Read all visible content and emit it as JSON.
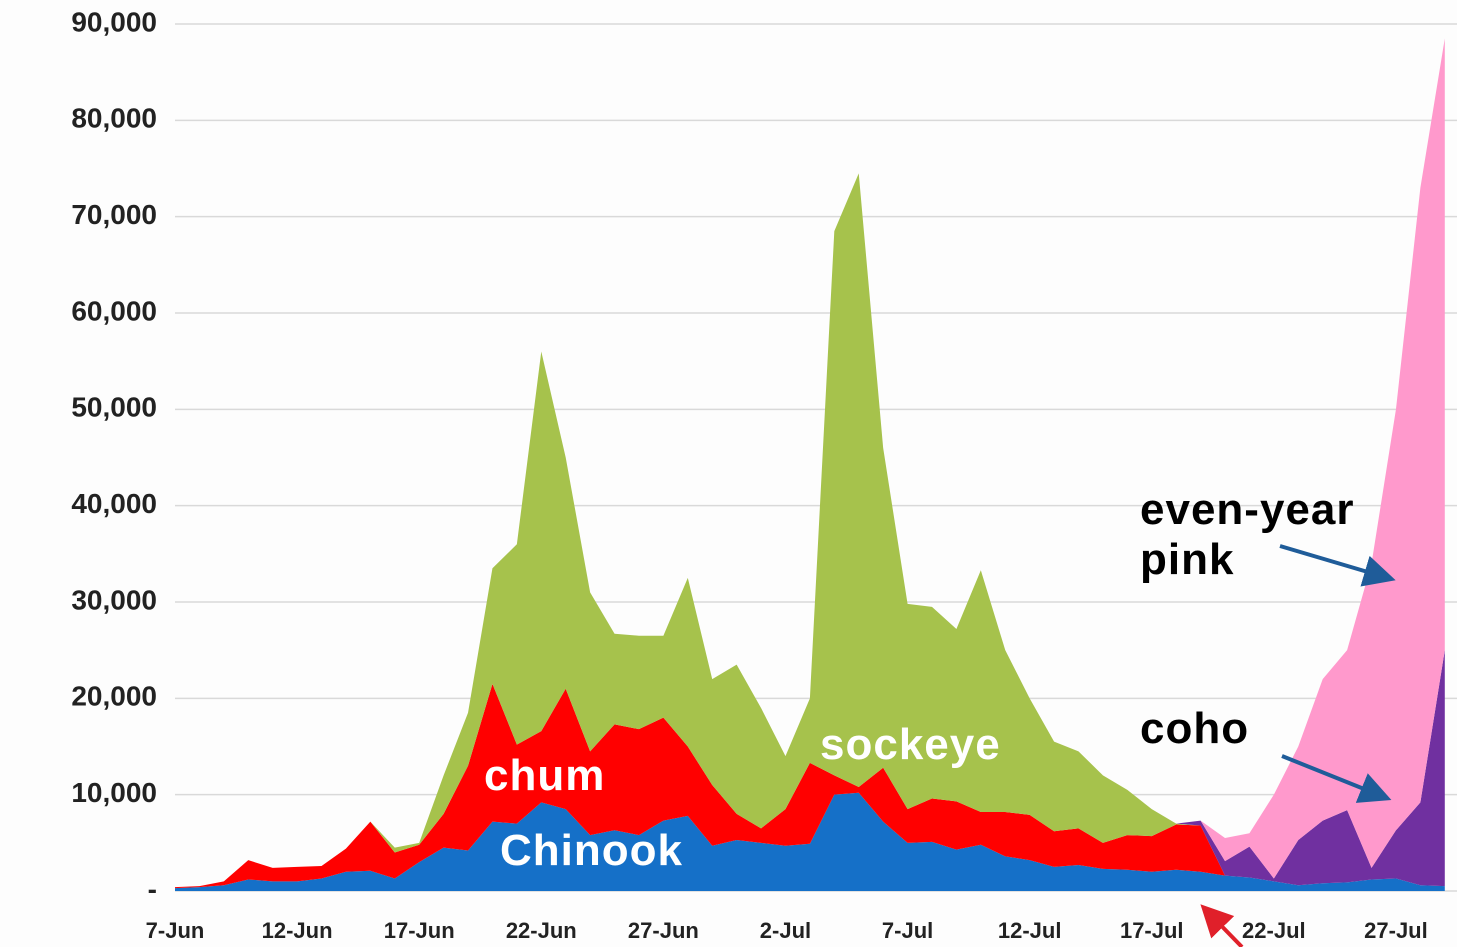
{
  "chart_data": {
    "type": "stacked-area",
    "categories": [
      "7-Jun",
      null,
      null,
      null,
      null,
      "12-Jun",
      null,
      null,
      null,
      null,
      "17-Jun",
      null,
      null,
      null,
      null,
      "22-Jun",
      null,
      null,
      null,
      null,
      "27-Jun",
      null,
      null,
      null,
      null,
      "2-Jul",
      null,
      null,
      null,
      null,
      "7-Jul",
      null,
      null,
      null,
      null,
      "12-Jul",
      null,
      null,
      null,
      null,
      "17-Jul",
      null,
      null,
      null,
      null,
      "22-Jul",
      null,
      null,
      null,
      null,
      "27-Jul",
      null,
      null
    ],
    "series": [
      {
        "name": "Chinook",
        "color": "#1570c8",
        "values": [
          300,
          400,
          600,
          1200,
          1000,
          1000,
          1300,
          2000,
          2100,
          1300,
          3000,
          4500,
          4200,
          7200,
          7000,
          9200,
          8500,
          5800,
          6300,
          5800,
          7300,
          7800,
          4700,
          5300,
          5000,
          4700,
          4900,
          10000,
          10200,
          7200,
          5000,
          5100,
          4300,
          4800,
          3600,
          3200,
          2500,
          2700,
          2300,
          2200,
          2000,
          2200,
          2000,
          1600,
          1400,
          1000,
          600,
          800,
          900,
          1200,
          1300,
          600,
          500
        ]
      },
      {
        "name": "chum",
        "color": "#ff0000",
        "values": [
          100,
          100,
          400,
          2000,
          1400,
          1500,
          1300,
          2400,
          5100,
          2700,
          1800,
          3500,
          8800,
          14300,
          8200,
          7400,
          12500,
          8700,
          11000,
          11000,
          10700,
          7200,
          6300,
          2700,
          1500,
          3800,
          8400,
          2000,
          600,
          5600,
          3500,
          4500,
          5000,
          3400,
          4600,
          4700,
          3700,
          3800,
          2700,
          3600,
          3700,
          4700,
          4800,
          0,
          0,
          0,
          0,
          0,
          0,
          0,
          0,
          0,
          0
        ]
      },
      {
        "name": "sockeye",
        "color": "#a6c24c",
        "values": [
          0,
          0,
          0,
          0,
          0,
          0,
          0,
          0,
          0,
          500,
          200,
          4000,
          5500,
          12000,
          20800,
          39400,
          24000,
          16500,
          9400,
          9700,
          8500,
          17500,
          11000,
          15500,
          12500,
          5500,
          6700,
          56500,
          63700,
          33200,
          21300,
          19900,
          17900,
          25100,
          16800,
          12100,
          9300,
          8000,
          7000,
          4700,
          2800,
          100,
          0,
          0,
          0,
          0,
          0,
          0,
          0,
          0,
          0,
          0,
          0
        ]
      },
      {
        "name": "coho",
        "color": "#7030a0",
        "values": [
          0,
          0,
          0,
          0,
          0,
          0,
          0,
          0,
          0,
          0,
          0,
          0,
          0,
          0,
          0,
          0,
          0,
          0,
          0,
          0,
          0,
          0,
          0,
          0,
          0,
          0,
          0,
          0,
          0,
          0,
          0,
          0,
          0,
          0,
          0,
          0,
          0,
          0,
          0,
          0,
          0,
          0,
          500,
          1500,
          3200,
          300,
          4700,
          6500,
          7500,
          1200,
          5000,
          8600,
          24500
        ]
      },
      {
        "name": "even-year pink",
        "color": "#ff99cc",
        "values": [
          0,
          0,
          0,
          0,
          0,
          0,
          0,
          0,
          0,
          0,
          0,
          0,
          0,
          0,
          0,
          0,
          0,
          0,
          0,
          0,
          0,
          0,
          0,
          0,
          0,
          0,
          0,
          0,
          0,
          0,
          0,
          0,
          0,
          0,
          0,
          0,
          0,
          0,
          0,
          0,
          0,
          0,
          0,
          2400,
          1400,
          8700,
          9700,
          14700,
          16600,
          31600,
          43700,
          63800,
          63500
        ]
      }
    ],
    "ylim": [
      0,
      90000
    ],
    "yticks": [
      {
        "value": 0,
        "label": "-"
      },
      {
        "value": 10000,
        "label": "10,000"
      },
      {
        "value": 20000,
        "label": "20,000"
      },
      {
        "value": 30000,
        "label": "30,000"
      },
      {
        "value": 40000,
        "label": "40,000"
      },
      {
        "value": 50000,
        "label": "50,000"
      },
      {
        "value": 60000,
        "label": "60,000"
      },
      {
        "value": 70000,
        "label": "70,000"
      },
      {
        "value": 80000,
        "label": "80,000"
      },
      {
        "value": 90000,
        "label": "90,000"
      }
    ],
    "grid": true
  }
}
